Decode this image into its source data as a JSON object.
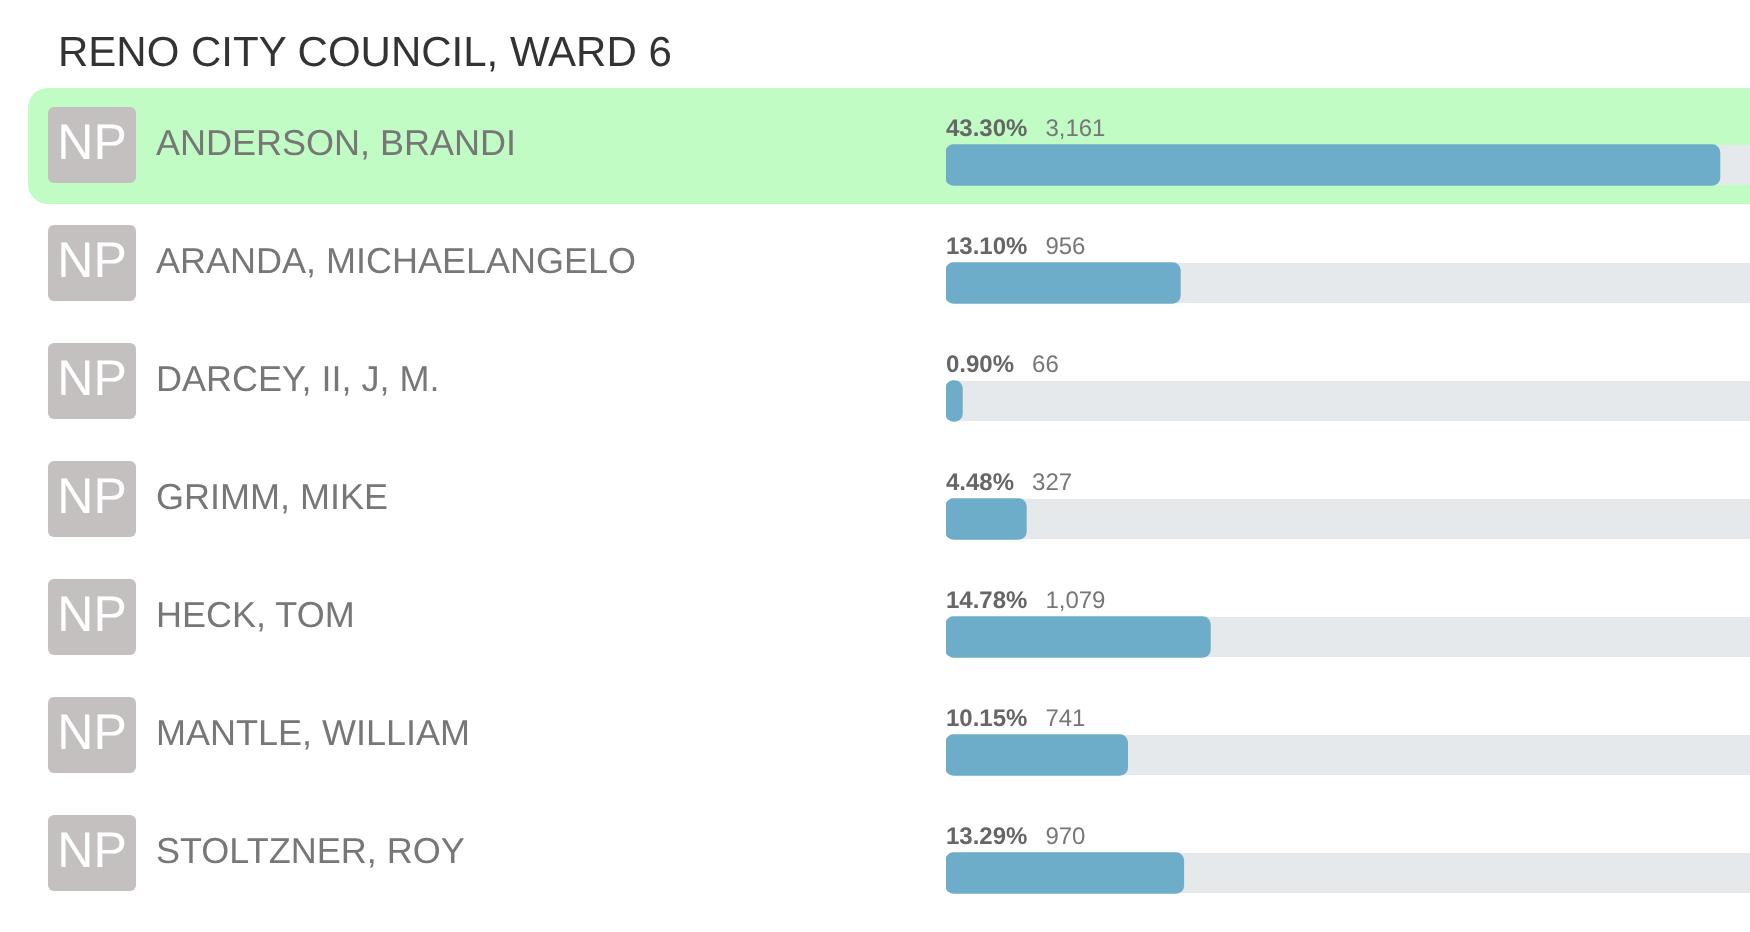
{
  "chart_data": {
    "type": "bar",
    "orientation": "horizontal",
    "title": "RENO CITY COUNCIL, WARD 6",
    "categories": [
      "ANDERSON, BRANDI",
      "ARANDA, MICHAELANGELO",
      "DARCEY, II, J, M.",
      "GRIMM, MIKE",
      "HECK, TOM",
      "MANTLE, WILLIAM",
      "STOLTZNER, ROY"
    ],
    "values": [
      43.3,
      13.1,
      0.9,
      4.48,
      14.78,
      10.15,
      13.29
    ],
    "value_labels": [
      "43.30% 3,161",
      "13.10% 956",
      "0.90% 66",
      "4.48% 327",
      "14.78% 1,079",
      "10.15% 741",
      "13.29% 970"
    ],
    "color": "#6eadc9",
    "legend": false,
    "annotations": [
      "NP",
      "NP",
      "NP",
      "NP",
      "NP",
      "NP",
      "NP"
    ],
    "bands": [
      {
        "axis": "y",
        "from": "ANDERSON, BRANDI",
        "to": "ANDERSON, BRANDI",
        "color": "#c0fcc4"
      }
    ]
  }
}
